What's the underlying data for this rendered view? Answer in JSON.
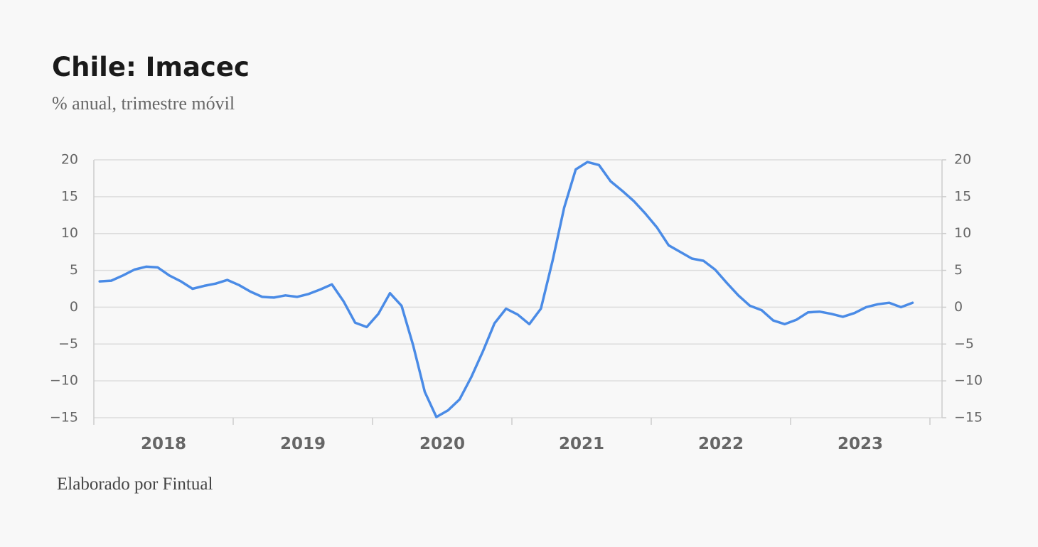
{
  "chart_data": {
    "type": "line",
    "title": "Chile: Imacec",
    "subtitle": "% anual, trimestre móvil",
    "source": "Elaborado por Fintual",
    "categories": [
      null,
      null,
      null,
      null,
      null,
      null,
      null,
      null,
      null,
      null,
      null,
      null,
      null,
      null,
      null,
      null,
      null,
      null,
      null,
      null,
      null,
      null,
      null,
      null,
      null,
      null,
      null,
      null,
      null,
      null,
      null,
      null,
      null,
      null,
      null,
      null,
      null,
      null,
      null,
      null,
      null,
      null,
      null,
      null,
      null,
      null,
      null,
      null,
      null,
      null,
      null,
      null,
      null,
      null,
      null,
      null,
      null,
      null,
      null,
      null,
      null,
      null,
      null,
      null,
      null,
      null,
      null,
      null,
      null,
      null,
      null
    ],
    "year_labels": [
      "2018",
      "2019",
      "2020",
      "2021",
      "2022",
      "2023"
    ],
    "series": [
      {
        "color": "#4a8be6",
        "values": [
          3.5,
          3.6,
          4.3,
          5.1,
          5.5,
          5.4,
          4.3,
          3.5,
          2.5,
          2.9,
          3.2,
          3.7,
          3.0,
          2.1,
          1.4,
          1.3,
          1.6,
          1.4,
          1.8,
          2.4,
          3.1,
          0.8,
          -2.1,
          -2.7,
          -0.9,
          1.9,
          0.2,
          -5.2,
          -11.5,
          -14.9,
          -14.0,
          -12.5,
          -9.5,
          -6.0,
          -2.2,
          -0.2,
          -1.0,
          -2.3,
          -0.2,
          6.3,
          13.5,
          18.7,
          19.7,
          19.3,
          17.1,
          15.8,
          14.4,
          12.7,
          10.8,
          8.4,
          7.5,
          6.6,
          6.3,
          5.1,
          3.3,
          1.6,
          0.2,
          -0.4,
          -1.8,
          -2.3,
          -1.7,
          -0.7,
          -0.6,
          -0.9,
          -1.3,
          -0.8,
          0.0,
          0.4,
          0.6,
          0.0,
          0.6
        ]
      }
    ],
    "ylim": [
      -15,
      20
    ],
    "yticks": [
      20,
      15,
      10,
      5,
      0,
      {
        "value": -5,
        "label": "−5"
      },
      {
        "value": -10,
        "label": "−10"
      },
      {
        "value": -15,
        "label": "−15"
      }
    ],
    "y2lim": [
      -15,
      20
    ],
    "y2ticks": [
      20,
      15,
      10,
      5,
      0,
      {
        "value": -5,
        "label": "−5"
      },
      {
        "value": -10,
        "label": "−10"
      },
      {
        "value": -15,
        "label": "−15"
      }
    ],
    "grid": true
  }
}
